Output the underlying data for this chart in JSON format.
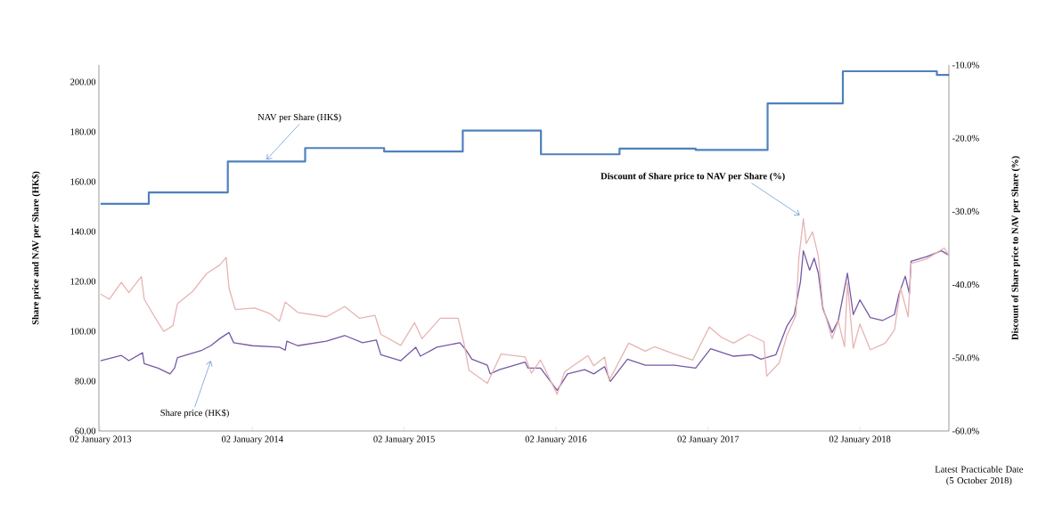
{
  "chart_data": {
    "type": "line",
    "ylabel": "Share price and NAV per Share (HK$)",
    "y2label": "Discount of Share price to NAV per Share (%)",
    "xlim": [
      "2012-12-29",
      "2018-08-04"
    ],
    "xticks": [
      {
        "value": "2013-01-02",
        "label": "02 January 2013"
      },
      {
        "value": "2014-01-02",
        "label": "02 January 2014"
      },
      {
        "value": "2015-01-02",
        "label": "02 January 2015"
      },
      {
        "value": "2016-01-02",
        "label": "02 January 2016"
      },
      {
        "value": "2017-01-02",
        "label": "02 January 2017"
      },
      {
        "value": "2018-01-02",
        "label": "02 January 2018"
      }
    ],
    "ylim": [
      60,
      206.8
    ],
    "yticks": [
      {
        "value": 60,
        "label": "60.00"
      },
      {
        "value": 80,
        "label": "80.00"
      },
      {
        "value": 100,
        "label": "100.00"
      },
      {
        "value": 120,
        "label": "120.00"
      },
      {
        "value": 140,
        "label": "140.00"
      },
      {
        "value": 160,
        "label": "160.00"
      },
      {
        "value": 180,
        "label": "180.00"
      },
      {
        "value": 200,
        "label": "200.00"
      }
    ],
    "y2lim": [
      -60,
      -10
    ],
    "y2ticks": [
      {
        "value": -60,
        "label": "-60.0%"
      },
      {
        "value": -50,
        "label": "-50.0%"
      },
      {
        "value": -40,
        "label": "-40.0%"
      },
      {
        "value": -30,
        "label": "-30.0%"
      },
      {
        "value": -20,
        "label": "-20.0%"
      },
      {
        "value": -10,
        "label": "-10.0%"
      }
    ],
    "annotations": [
      "Latest Practicable Date (5 October 2018)"
    ],
    "series": [
      {
        "name": "NAV per Share (HK$)",
        "type": "step",
        "color": "#4f81bd",
        "x": [
          "2013-01-02",
          "2013-04-28",
          "2013-11-04",
          "2014-05-09",
          "2014-11-15",
          "2015-05-23",
          "2015-11-27",
          "2016-06-03",
          "2016-12-03",
          "2017-05-25",
          "2017-11-22",
          "2018-07-06",
          "2018-08-04"
        ],
        "values": [
          151.1,
          155.7,
          168.1,
          173.5,
          172.1,
          180.5,
          171.0,
          173.3,
          172.7,
          191.4,
          204.3,
          202.8,
          202.8
        ]
      },
      {
        "name": "Share price (HK$)",
        "color": "#7559a5",
        "x": [
          "2013-01-02",
          "2013-02-21",
          "2013-03-11",
          "2013-04-13",
          "2013-04-17",
          "2013-05-20",
          "2013-06-18",
          "2013-06-29",
          "2013-07-06",
          "2013-09-03",
          "2013-09-24",
          "2013-10-16",
          "2013-11-07",
          "2013-11-18",
          "2014-01-02",
          "2014-03-08",
          "2014-03-22",
          "2014-03-26",
          "2014-04-21",
          "2014-06-29",
          "2014-08-12",
          "2014-09-24",
          "2014-10-27",
          "2014-11-07",
          "2014-12-25",
          "2015-01-30",
          "2015-02-10",
          "2015-03-22",
          "2015-05-16",
          "2015-05-31",
          "2015-06-14",
          "2015-07-21",
          "2015-07-28",
          "2015-08-19",
          "2015-10-20",
          "2015-10-27",
          "2015-11-26",
          "2016-01-05",
          "2016-01-30",
          "2016-03-11",
          "2016-04-02",
          "2016-04-28",
          "2016-05-12",
          "2016-06-22",
          "2016-08-04",
          "2016-10-13",
          "2016-12-03",
          "2017-01-08",
          "2017-03-04",
          "2017-04-17",
          "2017-05-09",
          "2017-06-14",
          "2017-07-10",
          "2017-07-28",
          "2017-08-12",
          "2017-08-19",
          "2017-09-03",
          "2017-09-14",
          "2017-09-24",
          "2017-10-05",
          "2017-10-27",
          "2017-11-11",
          "2017-12-03",
          "2017-12-17",
          "2018-01-02",
          "2018-01-27",
          "2018-02-25",
          "2018-03-26",
          "2018-04-06",
          "2018-04-21",
          "2018-05-01",
          "2018-05-05",
          "2018-06-11",
          "2018-07-17",
          "2018-08-04"
        ],
        "values": [
          88.2,
          90.3,
          88.2,
          91.4,
          87.0,
          85.2,
          82.9,
          85.2,
          89.4,
          92.4,
          94.2,
          97.1,
          99.5,
          95.4,
          94.2,
          93.6,
          92.4,
          96.0,
          94.2,
          96.0,
          98.3,
          95.4,
          96.5,
          90.6,
          88.2,
          93.6,
          90.0,
          93.6,
          95.4,
          92.4,
          88.8,
          86.4,
          82.9,
          84.6,
          87.6,
          85.2,
          85.2,
          76.3,
          82.9,
          84.6,
          82.9,
          85.8,
          79.9,
          88.8,
          86.4,
          86.4,
          85.2,
          93.0,
          90.0,
          90.6,
          88.8,
          90.6,
          101.9,
          106.7,
          119.8,
          132.3,
          124.5,
          129.3,
          123.3,
          109.0,
          99.5,
          104.3,
          123.3,
          106.7,
          112.6,
          105.5,
          104.3,
          106.7,
          115.0,
          122.1,
          115.0,
          128.1,
          129.9,
          132.3,
          130.5
        ]
      },
      {
        "name": "Discount of Share price to NAV per Share (%)",
        "axis": "y2",
        "color": "#e6b4b3",
        "x": [
          "2013-01-02",
          "2013-01-23",
          "2013-02-21",
          "2013-03-11",
          "2013-04-10",
          "2013-04-17",
          "2013-05-12",
          "2013-06-03",
          "2013-06-25",
          "2013-07-06",
          "2013-08-12",
          "2013-09-14",
          "2013-10-16",
          "2013-10-31",
          "2013-11-07",
          "2013-11-22",
          "2014-01-08",
          "2014-02-14",
          "2014-03-08",
          "2014-03-22",
          "2014-04-21",
          "2014-06-29",
          "2014-08-12",
          "2014-09-17",
          "2014-10-24",
          "2014-11-07",
          "2014-12-25",
          "2015-01-27",
          "2015-02-14",
          "2015-03-30",
          "2015-05-12",
          "2015-05-27",
          "2015-06-07",
          "2015-07-21",
          "2015-08-23",
          "2015-10-20",
          "2015-11-04",
          "2015-11-26",
          "2016-01-05",
          "2016-01-23",
          "2016-03-19",
          "2016-04-02",
          "2016-04-28",
          "2016-05-09",
          "2016-06-25",
          "2016-08-04",
          "2016-08-26",
          "2016-10-13",
          "2016-11-26",
          "2017-01-05",
          "2017-02-03",
          "2017-03-04",
          "2017-04-10",
          "2017-05-16",
          "2017-05-23",
          "2017-06-22",
          "2017-07-10",
          "2017-08-01",
          "2017-08-08",
          "2017-08-19",
          "2017-08-26",
          "2017-09-10",
          "2017-09-24",
          "2017-10-05",
          "2017-10-27",
          "2017-11-11",
          "2017-11-26",
          "2017-12-03",
          "2017-12-17",
          "2018-01-02",
          "2018-01-27",
          "2018-03-04",
          "2018-03-26",
          "2018-04-10",
          "2018-04-28",
          "2018-05-05",
          "2018-06-11",
          "2018-07-24",
          "2018-08-04"
        ],
        "values": [
          -41.3,
          -42.0,
          -39.7,
          -41.1,
          -38.9,
          -42.0,
          -44.4,
          -46.4,
          -45.6,
          -42.6,
          -40.9,
          -38.5,
          -37.3,
          -36.3,
          -40.5,
          -43.4,
          -43.2,
          -44.0,
          -45.0,
          -42.4,
          -43.8,
          -44.4,
          -43.0,
          -44.6,
          -44.2,
          -46.8,
          -48.3,
          -45.2,
          -47.4,
          -44.6,
          -44.6,
          -48.3,
          -51.7,
          -53.5,
          -49.5,
          -49.9,
          -52.1,
          -50.3,
          -55.0,
          -51.9,
          -49.7,
          -51.1,
          -49.9,
          -53.1,
          -48.0,
          -49.1,
          -48.5,
          -49.5,
          -50.3,
          -45.8,
          -47.2,
          -48.0,
          -46.8,
          -47.8,
          -52.5,
          -50.7,
          -47.0,
          -44.2,
          -36.5,
          -31.0,
          -34.4,
          -32.8,
          -36.1,
          -43.0,
          -47.4,
          -45.0,
          -48.5,
          -39.7,
          -48.7,
          -45.4,
          -48.9,
          -48.0,
          -46.2,
          -40.5,
          -44.4,
          -37.1,
          -36.5,
          -35.0,
          -36.1
        ]
      }
    ]
  }
}
